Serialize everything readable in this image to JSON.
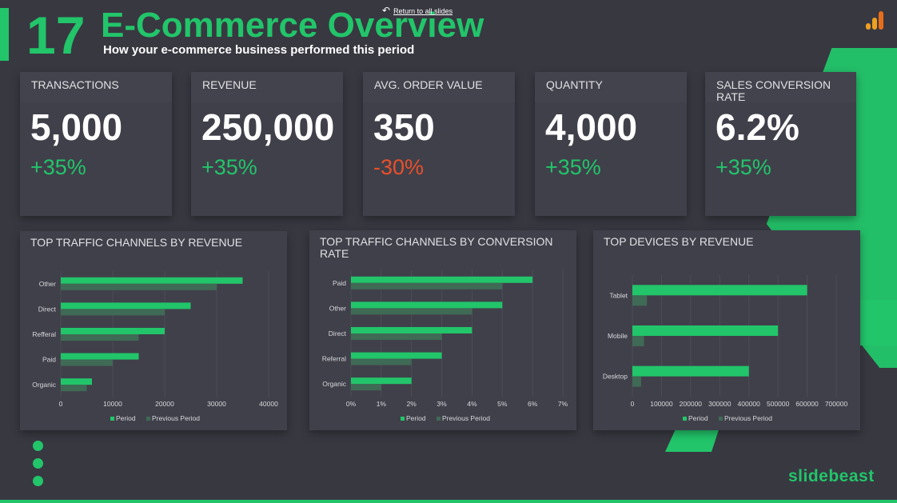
{
  "header": {
    "slide_number": "17",
    "title": "E-Commerce Overview",
    "subtitle": "How your e-commerce business performed this period",
    "return_link": "Return to all slides"
  },
  "kpis": [
    {
      "label": "TRANSACTIONS",
      "value": "5,000",
      "change": "+35%"
    },
    {
      "label": "REVENUE",
      "value": "250,000",
      "change": "+35%"
    },
    {
      "label": "AVG. ORDER VALUE",
      "value": "350",
      "change": "-30%"
    },
    {
      "label": "QUANTITY",
      "value": "4,000",
      "change": "+35%"
    },
    {
      "label": "SALES CONVERSION RATE",
      "value": "6.2%",
      "change": "+35%"
    }
  ],
  "brand": "slidebeast",
  "colors": {
    "accent": "#22c56a",
    "negative": "#e8502a",
    "background": "#383841",
    "panel": "#40404a",
    "previous_period": "#3f6a55"
  },
  "icons": {
    "return": "return-arrow-icon",
    "analytics": "analytics-bars-icon"
  },
  "chart_data": [
    {
      "type": "bar",
      "orientation": "horizontal",
      "title": "TOP TRAFFIC CHANNELS BY REVENUE",
      "categories": [
        "Other",
        "Direct",
        "Refferal",
        "Paid",
        "Organic"
      ],
      "series": [
        {
          "name": "Period",
          "values": [
            35000,
            25000,
            20000,
            15000,
            6000
          ]
        },
        {
          "name": "Previous Period",
          "values": [
            30000,
            20000,
            15000,
            10000,
            5000
          ]
        }
      ],
      "xlim": [
        0,
        40000
      ],
      "ticks": [
        0,
        10000,
        20000,
        30000,
        40000
      ],
      "tick_labels": [
        "0",
        "10000",
        "20000",
        "30000",
        "40000"
      ],
      "grid": true,
      "legend": "bottom"
    },
    {
      "type": "bar",
      "orientation": "horizontal",
      "title": "TOP TRAFFIC CHANNELS BY CONVERSION RATE",
      "categories": [
        "Paid",
        "Other",
        "Direct",
        "Referral",
        "Organic"
      ],
      "series": [
        {
          "name": "Period",
          "values": [
            6,
            5,
            4,
            3,
            2
          ]
        },
        {
          "name": "Previous Period",
          "values": [
            5,
            4,
            3,
            2,
            1
          ]
        }
      ],
      "xlim": [
        0,
        7
      ],
      "ticks": [
        0,
        1,
        2,
        3,
        4,
        5,
        6,
        7
      ],
      "tick_labels": [
        "0%",
        "1%",
        "2%",
        "3%",
        "4%",
        "5%",
        "6%",
        "7%"
      ],
      "grid": true,
      "legend": "bottom"
    },
    {
      "type": "bar",
      "orientation": "horizontal",
      "title": "TOP DEVICES BY REVENUE",
      "categories": [
        "Tablet",
        "Mobile",
        "Desktop"
      ],
      "series": [
        {
          "name": "Period",
          "values": [
            600000,
            500000,
            400000
          ]
        },
        {
          "name": "Previous Period",
          "values": [
            50000,
            40000,
            30000
          ]
        }
      ],
      "xlim": [
        0,
        700000
      ],
      "ticks": [
        0,
        100000,
        200000,
        300000,
        400000,
        500000,
        600000,
        700000
      ],
      "tick_labels": [
        "0",
        "100000",
        "200000",
        "300000",
        "400000",
        "500000",
        "600000",
        "700000"
      ],
      "grid": true,
      "legend": "bottom"
    }
  ]
}
